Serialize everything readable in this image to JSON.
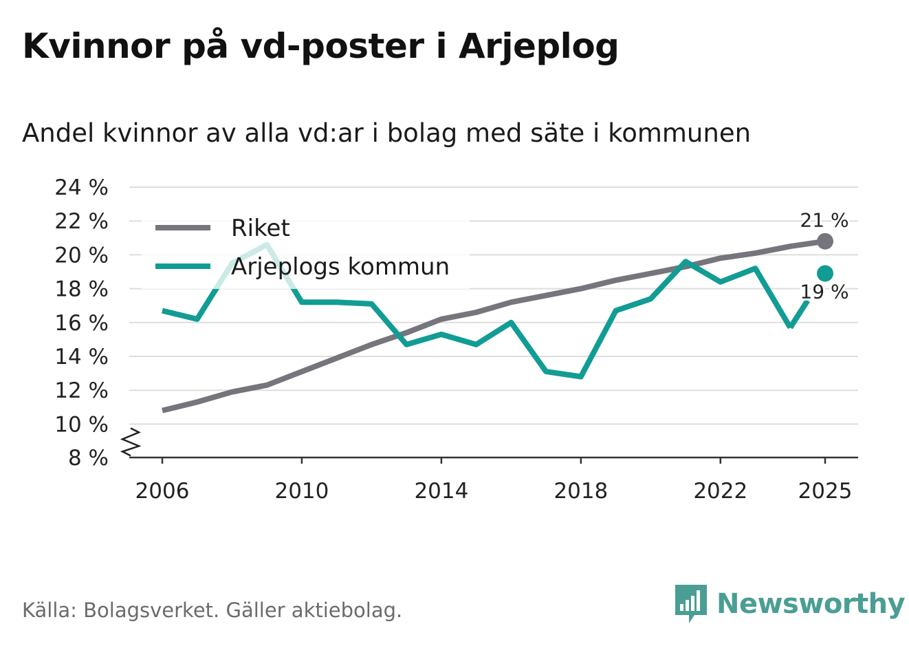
{
  "header": {
    "title": "Kvinnor på vd-poster i Arjeplog",
    "subtitle": "Andel kvinnor av alla vd:ar i bolag med säte i kommunen"
  },
  "footer": {
    "source": "Källa: Bolagsverket. Gäller aktiebolag.",
    "brand": "Newsworthy"
  },
  "colors": {
    "riket": "#76757d",
    "arjeplog": "#119c94",
    "grid": "#dddddd",
    "axis": "#333333",
    "brand": "#4a9e93"
  },
  "chart_data": {
    "type": "line",
    "title": "Andel kvinnor av alla vd:ar i bolag med säte i kommunen",
    "xlabel": "",
    "ylabel": "",
    "x": [
      2006,
      2007,
      2008,
      2009,
      2010,
      2011,
      2012,
      2013,
      2014,
      2015,
      2016,
      2017,
      2018,
      2019,
      2020,
      2021,
      2022,
      2023,
      2024,
      2025
    ],
    "xticks": [
      2006,
      2010,
      2014,
      2018,
      2022,
      2025
    ],
    "xtick_labels": [
      "2006",
      "2010",
      "2014",
      "2018",
      "2022",
      "2025"
    ],
    "ylim": [
      8,
      24
    ],
    "yticks": [
      8,
      10,
      12,
      14,
      16,
      18,
      20,
      22,
      24
    ],
    "ytick_labels": [
      "8 %",
      "10 %",
      "12 %",
      "14 %",
      "16 %",
      "18 %",
      "20 %",
      "22 %",
      "24 %"
    ],
    "axis_break": true,
    "grid": true,
    "legend_position": "top-left",
    "series": [
      {
        "name": "Riket",
        "color": "#76757d",
        "values": [
          10.8,
          11.3,
          11.9,
          12.3,
          13.1,
          13.9,
          14.7,
          15.4,
          16.2,
          16.6,
          17.2,
          17.6,
          18.0,
          18.5,
          18.9,
          19.3,
          19.8,
          20.1,
          20.5,
          20.8
        ],
        "end_label": "21 %",
        "end_label_side": "above"
      },
      {
        "name": "Arjeplogs kommun",
        "color": "#119c94",
        "values": [
          16.7,
          16.2,
          19.5,
          20.6,
          17.2,
          17.2,
          17.1,
          14.7,
          15.3,
          14.7,
          16.0,
          13.1,
          12.8,
          16.7,
          17.4,
          19.6,
          18.4,
          19.2,
          15.7,
          18.9
        ],
        "end_label": "19 %",
        "end_label_side": "below",
        "end_gap": true
      }
    ]
  }
}
